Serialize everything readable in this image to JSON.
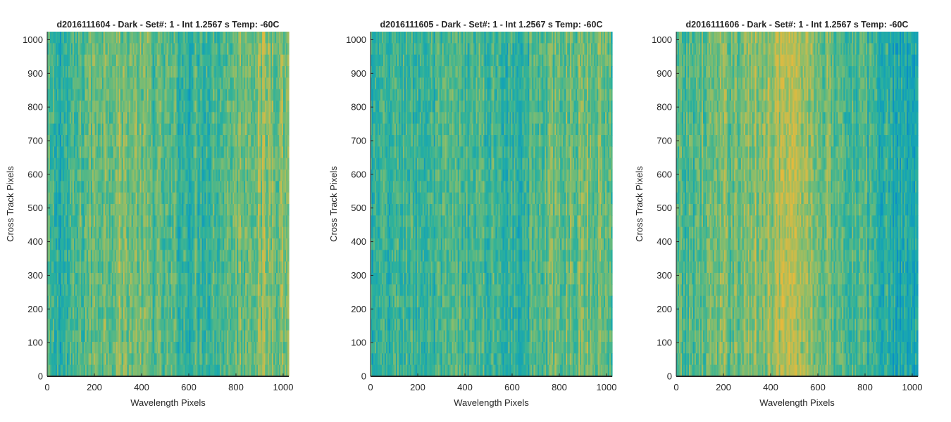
{
  "figure": {
    "background": "#ffffff"
  },
  "colormap": [
    "#0a8fc4",
    "#15a3b5",
    "#2ab09e",
    "#58b884",
    "#8cbd6a",
    "#c2bc4f",
    "#e6b93c"
  ],
  "chart_data": [
    {
      "type": "heatmap",
      "title": "d2016111604 - Dark - Set#: 1 - Int 1.2567 s Temp: -60C",
      "xlabel": "Wavelength Pixels",
      "ylabel": "Cross Track Pixels",
      "xlim": [
        0,
        1024
      ],
      "ylim": [
        0,
        1024
      ],
      "xticks": [
        0,
        200,
        400,
        600,
        800,
        1000
      ],
      "yticks": [
        0,
        100,
        200,
        300,
        400,
        500,
        600,
        700,
        800,
        900,
        1000
      ],
      "column_profile": {
        "x": [
          0,
          50,
          100,
          150,
          200,
          250,
          300,
          350,
          400,
          450,
          500,
          550,
          600,
          650,
          700,
          750,
          800,
          850,
          900,
          950,
          1024
        ],
        "level": [
          0.38,
          0.3,
          0.36,
          0.48,
          0.56,
          0.6,
          0.62,
          0.6,
          0.55,
          0.5,
          0.45,
          0.4,
          0.38,
          0.4,
          0.44,
          0.48,
          0.55,
          0.6,
          0.64,
          0.66,
          0.62
        ]
      }
    },
    {
      "type": "heatmap",
      "title": "d2016111605 - Dark - Set#: 1 - Int 1.2567 s Temp: -60C",
      "xlabel": "Wavelength Pixels",
      "ylabel": "Cross Track Pixels",
      "xlim": [
        0,
        1024
      ],
      "ylim": [
        0,
        1024
      ],
      "xticks": [
        0,
        200,
        400,
        600,
        800,
        1000
      ],
      "yticks": [
        0,
        100,
        200,
        300,
        400,
        500,
        600,
        700,
        800,
        900,
        1000
      ],
      "column_profile": {
        "x": [
          0,
          50,
          100,
          150,
          200,
          250,
          300,
          350,
          400,
          450,
          500,
          550,
          600,
          650,
          700,
          750,
          800,
          850,
          900,
          950,
          1024
        ],
        "level": [
          0.3,
          0.32,
          0.38,
          0.4,
          0.38,
          0.36,
          0.38,
          0.42,
          0.44,
          0.42,
          0.4,
          0.38,
          0.36,
          0.4,
          0.44,
          0.48,
          0.52,
          0.56,
          0.58,
          0.58,
          0.54
        ]
      }
    },
    {
      "type": "heatmap",
      "title": "d2016111606 - Dark - Set#: 1 - Int 1.2567 s Temp: -60C",
      "xlabel": "Wavelength Pixels",
      "ylabel": "Cross Track Pixels",
      "xlim": [
        0,
        1024
      ],
      "ylim": [
        0,
        1024
      ],
      "xticks": [
        0,
        200,
        400,
        600,
        800,
        1000
      ],
      "yticks": [
        0,
        100,
        200,
        300,
        400,
        500,
        600,
        700,
        800,
        900,
        1000
      ],
      "column_profile": {
        "x": [
          0,
          50,
          100,
          150,
          200,
          250,
          300,
          350,
          400,
          450,
          500,
          550,
          600,
          650,
          700,
          750,
          800,
          850,
          900,
          950,
          1024
        ],
        "level": [
          0.4,
          0.44,
          0.5,
          0.54,
          0.56,
          0.58,
          0.6,
          0.66,
          0.74,
          0.78,
          0.76,
          0.7,
          0.62,
          0.56,
          0.5,
          0.46,
          0.4,
          0.34,
          0.3,
          0.26,
          0.24
        ]
      }
    }
  ]
}
